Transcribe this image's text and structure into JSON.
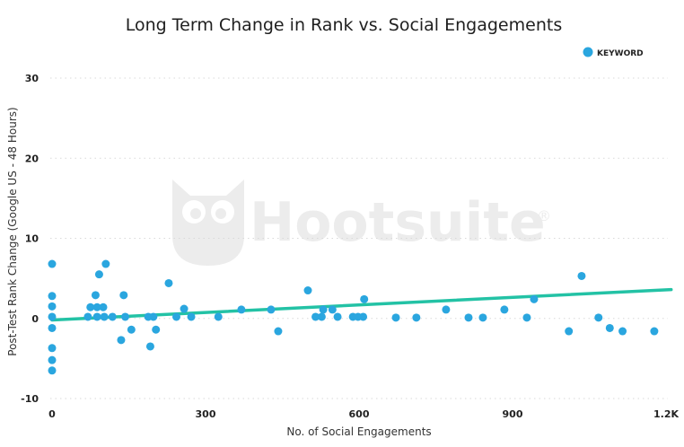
{
  "brand": {
    "watermark": "Hootsuite",
    "registered": "®"
  },
  "colors": {
    "point": "#2aa6df",
    "trend": "#23c2a5"
  },
  "chart_data": {
    "type": "scatter",
    "title": "Long Term Change in Rank vs. Social Engagements",
    "xlabel": "No. of Social Engagements",
    "ylabel": "Post-Test Rank Change (Google US - 48 Hours)",
    "xlim": [
      0,
      1200
    ],
    "ylim": [
      -10,
      30
    ],
    "x_ticks": [
      {
        "value": 0,
        "label": "0"
      },
      {
        "value": 300,
        "label": "300"
      },
      {
        "value": 600,
        "label": "600"
      },
      {
        "value": 900,
        "label": "900"
      },
      {
        "value": 1200,
        "label": "1.2K"
      }
    ],
    "y_ticks": [
      {
        "value": 30,
        "label": "30"
      },
      {
        "value": 20,
        "label": "20"
      },
      {
        "value": 10,
        "label": "10"
      },
      {
        "value": 0,
        "label": "0"
      },
      {
        "value": -10,
        "label": "-10"
      }
    ],
    "grid": true,
    "legend": {
      "position": "top-right",
      "entries": [
        "KEYWORD"
      ]
    },
    "series": [
      {
        "name": "KEYWORD",
        "points": [
          [
            0,
            6.8
          ],
          [
            0,
            2.8
          ],
          [
            0,
            1.5
          ],
          [
            0,
            0.2
          ],
          [
            0,
            -1.2
          ],
          [
            0,
            -3.7
          ],
          [
            0,
            -5.2
          ],
          [
            0,
            -6.5
          ],
          [
            70,
            0.2
          ],
          [
            75,
            1.4
          ],
          [
            85,
            2.9
          ],
          [
            88,
            1.4
          ],
          [
            88,
            0.2
          ],
          [
            92,
            5.5
          ],
          [
            100,
            1.4
          ],
          [
            102,
            0.2
          ],
          [
            105,
            6.8
          ],
          [
            118,
            0.2
          ],
          [
            135,
            -2.7
          ],
          [
            140,
            2.9
          ],
          [
            143,
            0.2
          ],
          [
            155,
            -1.4
          ],
          [
            188,
            0.2
          ],
          [
            192,
            -3.5
          ],
          [
            198,
            0.2
          ],
          [
            203,
            -1.4
          ],
          [
            228,
            4.4
          ],
          [
            243,
            0.2
          ],
          [
            258,
            1.2
          ],
          [
            272,
            0.2
          ],
          [
            325,
            0.2
          ],
          [
            370,
            1.1
          ],
          [
            428,
            1.1
          ],
          [
            442,
            -1.6
          ],
          [
            500,
            3.5
          ],
          [
            515,
            0.2
          ],
          [
            527,
            0.2
          ],
          [
            530,
            1.1
          ],
          [
            548,
            1.1
          ],
          [
            558,
            0.2
          ],
          [
            588,
            0.2
          ],
          [
            598,
            0.2
          ],
          [
            608,
            0.2
          ],
          [
            610,
            2.4
          ],
          [
            672,
            0.1
          ],
          [
            712,
            0.1
          ],
          [
            770,
            1.1
          ],
          [
            814,
            0.1
          ],
          [
            842,
            0.1
          ],
          [
            884,
            1.1
          ],
          [
            928,
            0.1
          ],
          [
            942,
            2.4
          ],
          [
            1010,
            -1.6
          ],
          [
            1035,
            5.3
          ],
          [
            1068,
            0.1
          ],
          [
            1090,
            -1.2
          ],
          [
            1115,
            -1.6
          ],
          [
            1177,
            -1.6
          ]
        ]
      }
    ],
    "trendline": {
      "x": [
        0,
        1210
      ],
      "y": [
        -0.2,
        3.6
      ]
    }
  }
}
